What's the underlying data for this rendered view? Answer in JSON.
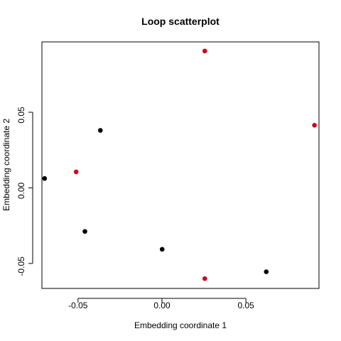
{
  "chart_data": {
    "type": "scatter",
    "title": "Loop scatterplot",
    "xlabel": "Embedding coordinate 1",
    "ylabel": "Embedding coordinate 2",
    "xlim": [
      -0.0715,
      0.0935
    ],
    "ylim": [
      -0.0665,
      0.0965
    ],
    "x_ticks": [
      -0.05,
      0.0,
      0.05
    ],
    "x_tick_labels": [
      "-0.05",
      "0.00",
      "0.05"
    ],
    "y_ticks": [
      -0.05,
      0.0,
      0.05
    ],
    "y_tick_labels": [
      "-0.05",
      "0.00",
      "0.05"
    ],
    "grid": false,
    "colors": {
      "black": "#000000",
      "red": "#d0021b"
    },
    "points": [
      {
        "x": 0.0255,
        "y": 0.0905,
        "color": "red"
      },
      {
        "x": 0.0908,
        "y": 0.0414,
        "color": "red"
      },
      {
        "x": -0.0367,
        "y": 0.038,
        "color": "black"
      },
      {
        "x": -0.0511,
        "y": 0.0106,
        "color": "red"
      },
      {
        "x": -0.0699,
        "y": 0.0062,
        "color": "black"
      },
      {
        "x": -0.0459,
        "y": -0.0288,
        "color": "black"
      },
      {
        "x": 0.0001,
        "y": -0.0406,
        "color": "black"
      },
      {
        "x": 0.0621,
        "y": -0.0555,
        "color": "black"
      },
      {
        "x": 0.0255,
        "y": -0.06,
        "color": "red"
      }
    ]
  }
}
